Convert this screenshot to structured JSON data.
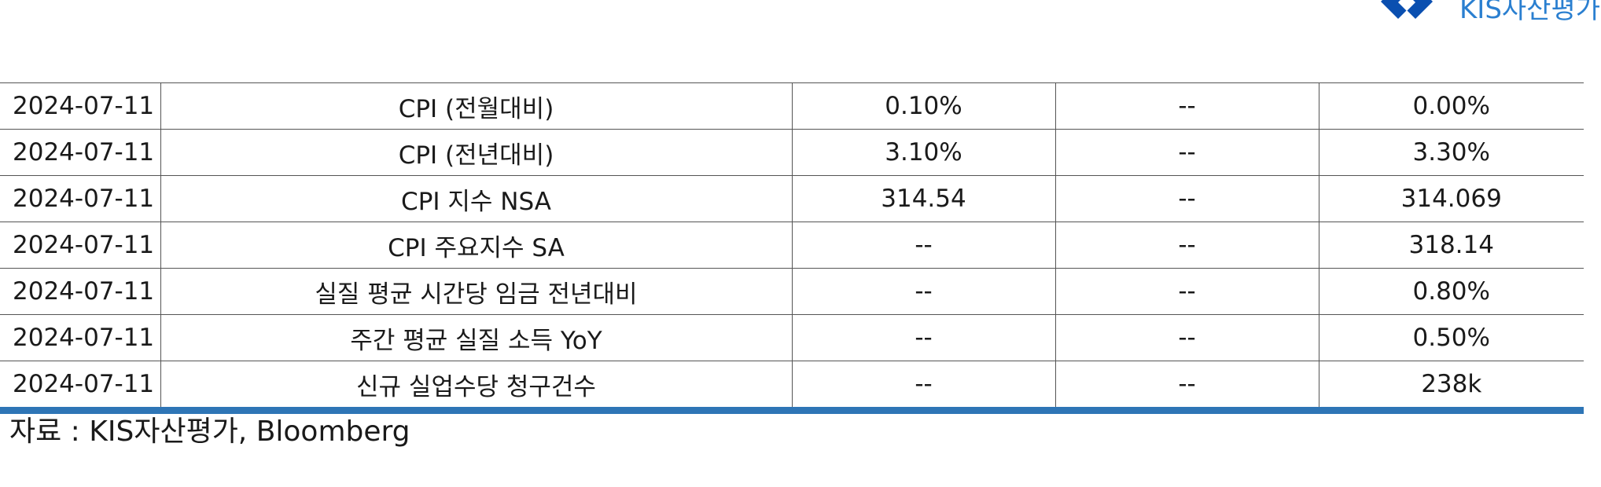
{
  "header": {
    "logo_text": "KIS자산평가",
    "logo_color": "#0a4fb0"
  },
  "table": {
    "rows": [
      {
        "date": "2024-07-11",
        "indicator": "CPI (전월대비)",
        "col3": "0.10%",
        "col4": "--",
        "col5": "0.00%"
      },
      {
        "date": "2024-07-11",
        "indicator": "CPI (전년대비)",
        "col3": "3.10%",
        "col4": "--",
        "col5": "3.30%"
      },
      {
        "date": "2024-07-11",
        "indicator": "CPI 지수 NSA",
        "col3": "314.54",
        "col4": "--",
        "col5": "314.069"
      },
      {
        "date": "2024-07-11",
        "indicator": "CPI 주요지수 SA",
        "col3": "--",
        "col4": "--",
        "col5": "318.14"
      },
      {
        "date": "2024-07-11",
        "indicator": "실질 평균 시간당 임금 전년대비",
        "col3": "--",
        "col4": "--",
        "col5": "0.80%"
      },
      {
        "date": "2024-07-11",
        "indicator": "주간 평균 실질 소득 YoY",
        "col3": "--",
        "col4": "--",
        "col5": "0.50%"
      },
      {
        "date": "2024-07-11",
        "indicator": "신규 실업수당 청구건수",
        "col3": "--",
        "col4": "--",
        "col5": "238k"
      }
    ],
    "bottom_rule_color": "#2e75b6"
  },
  "source": "자료 : KIS자산평가, Bloomberg"
}
